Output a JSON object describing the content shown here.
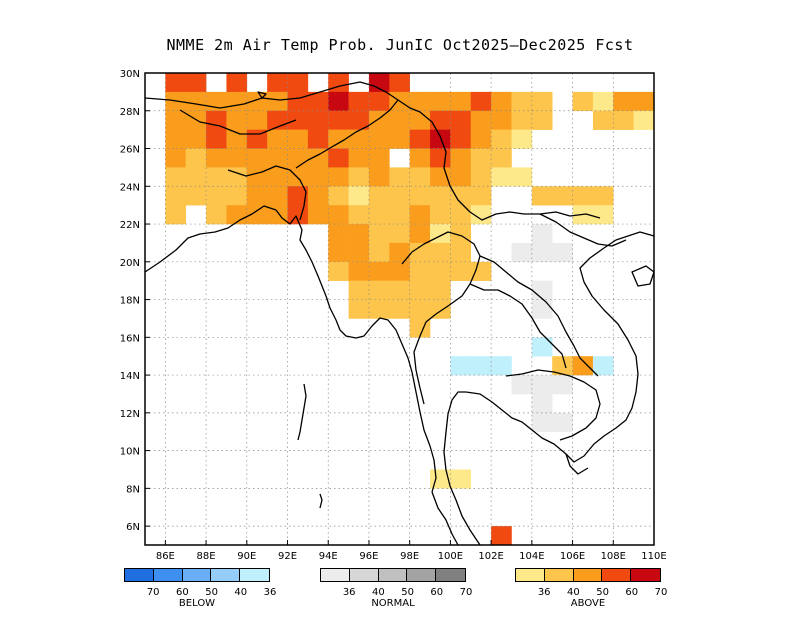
{
  "title": "NMME 2m Air Temp Prob. JunIC  Oct2025—Dec2025 Fcst",
  "map": {
    "lon_range": [
      85,
      110
    ],
    "lat_range": [
      5,
      30
    ],
    "x_tick_labels": [
      "86E",
      "88E",
      "90E",
      "92E",
      "94E",
      "96E",
      "98E",
      "100E",
      "102E",
      "104E",
      "106E",
      "108E",
      "110E"
    ],
    "y_tick_labels": [
      "6N",
      "8N",
      "10N",
      "12N",
      "14N",
      "16N",
      "18N",
      "20N",
      "22N",
      "24N",
      "26N",
      "28N",
      "30N"
    ],
    "grid": "dotted"
  },
  "legend": {
    "below": {
      "name": "BELOW",
      "labels": [
        "70",
        "60",
        "50",
        "40",
        "36"
      ],
      "colors": [
        "#1f6fe0",
        "#3f8ff0",
        "#6aaef5",
        "#96cdf8",
        "#bff0fb"
      ]
    },
    "normal": {
      "name": "NORMAL",
      "labels": [
        "36",
        "40",
        "50",
        "60",
        "70"
      ],
      "colors": [
        "#ececec",
        "#d7d7d7",
        "#c0c0c0",
        "#a3a3a3",
        "#808080"
      ]
    },
    "above": {
      "name": "ABOVE",
      "labels": [
        "36",
        "40",
        "50",
        "60",
        "70"
      ],
      "colors": [
        "#fde88a",
        "#fdc54b",
        "#fb9d1c",
        "#f04a10",
        "#c80810"
      ]
    }
  },
  "above_cells": [
    [
      86,
      29,
      4
    ],
    [
      87,
      29,
      4
    ],
    [
      89,
      29,
      4
    ],
    [
      91,
      29,
      4
    ],
    [
      92,
      29,
      4
    ],
    [
      94,
      29,
      4
    ],
    [
      96,
      29,
      5
    ],
    [
      97,
      29,
      4
    ],
    [
      86,
      28,
      3
    ],
    [
      87,
      28,
      3
    ],
    [
      88,
      28,
      3
    ],
    [
      89,
      28,
      3
    ],
    [
      90,
      28,
      3
    ],
    [
      91,
      28,
      3
    ],
    [
      92,
      28,
      4
    ],
    [
      93,
      28,
      4
    ],
    [
      94,
      28,
      5
    ],
    [
      95,
      28,
      4
    ],
    [
      96,
      28,
      4
    ],
    [
      97,
      28,
      3
    ],
    [
      98,
      28,
      3
    ],
    [
      99,
      28,
      3
    ],
    [
      100,
      28,
      3
    ],
    [
      101,
      28,
      4
    ],
    [
      102,
      28,
      3
    ],
    [
      103,
      28,
      2
    ],
    [
      104,
      28,
      2
    ],
    [
      106,
      28,
      2
    ],
    [
      107,
      28,
      1
    ],
    [
      108,
      28,
      3
    ],
    [
      109,
      28,
      3
    ],
    [
      86,
      27,
      3
    ],
    [
      87,
      27,
      3
    ],
    [
      88,
      27,
      4
    ],
    [
      89,
      27,
      3
    ],
    [
      90,
      27,
      3
    ],
    [
      91,
      27,
      4
    ],
    [
      92,
      27,
      4
    ],
    [
      93,
      27,
      4
    ],
    [
      94,
      27,
      4
    ],
    [
      95,
      27,
      4
    ],
    [
      96,
      27,
      3
    ],
    [
      97,
      27,
      3
    ],
    [
      98,
      27,
      3
    ],
    [
      99,
      27,
      4
    ],
    [
      100,
      27,
      4
    ],
    [
      101,
      27,
      3
    ],
    [
      102,
      27,
      3
    ],
    [
      103,
      27,
      2
    ],
    [
      104,
      27,
      2
    ],
    [
      107,
      27,
      2
    ],
    [
      108,
      27,
      2
    ],
    [
      109,
      27,
      1
    ],
    [
      86,
      26,
      3
    ],
    [
      87,
      26,
      3
    ],
    [
      88,
      26,
      4
    ],
    [
      89,
      26,
      3
    ],
    [
      90,
      26,
      4
    ],
    [
      91,
      26,
      3
    ],
    [
      92,
      26,
      3
    ],
    [
      93,
      26,
      4
    ],
    [
      94,
      26,
      3
    ],
    [
      95,
      26,
      3
    ],
    [
      96,
      26,
      3
    ],
    [
      97,
      26,
      3
    ],
    [
      98,
      26,
      4
    ],
    [
      99,
      26,
      5
    ],
    [
      100,
      26,
      4
    ],
    [
      101,
      26,
      3
    ],
    [
      102,
      26,
      2
    ],
    [
      103,
      26,
      1
    ],
    [
      86,
      25,
      3
    ],
    [
      87,
      25,
      2
    ],
    [
      88,
      25,
      3
    ],
    [
      89,
      25,
      3
    ],
    [
      90,
      25,
      3
    ],
    [
      91,
      25,
      3
    ],
    [
      92,
      25,
      3
    ],
    [
      93,
      25,
      3
    ],
    [
      94,
      25,
      4
    ],
    [
      95,
      25,
      3
    ],
    [
      96,
      25,
      3
    ],
    [
      98,
      25,
      3
    ],
    [
      99,
      25,
      4
    ],
    [
      100,
      25,
      3
    ],
    [
      101,
      25,
      2
    ],
    [
      102,
      25,
      2
    ],
    [
      86,
      24,
      2
    ],
    [
      87,
      24,
      2
    ],
    [
      88,
      24,
      2
    ],
    [
      89,
      24,
      2
    ],
    [
      90,
      24,
      3
    ],
    [
      91,
      24,
      3
    ],
    [
      92,
      24,
      3
    ],
    [
      93,
      24,
      3
    ],
    [
      94,
      24,
      3
    ],
    [
      95,
      24,
      2
    ],
    [
      96,
      24,
      3
    ],
    [
      97,
      24,
      2
    ],
    [
      98,
      24,
      2
    ],
    [
      99,
      24,
      3
    ],
    [
      100,
      24,
      3
    ],
    [
      101,
      24,
      2
    ],
    [
      102,
      24,
      1
    ],
    [
      103,
      24,
      1
    ],
    [
      86,
      23,
      2
    ],
    [
      87,
      23,
      2
    ],
    [
      88,
      23,
      2
    ],
    [
      89,
      23,
      2
    ],
    [
      90,
      23,
      3
    ],
    [
      91,
      23,
      3
    ],
    [
      92,
      23,
      4
    ],
    [
      93,
      23,
      3
    ],
    [
      94,
      23,
      2
    ],
    [
      95,
      23,
      1
    ],
    [
      96,
      23,
      2
    ],
    [
      97,
      23,
      2
    ],
    [
      98,
      23,
      2
    ],
    [
      99,
      23,
      2
    ],
    [
      100,
      23,
      2
    ],
    [
      101,
      23,
      2
    ],
    [
      104,
      23,
      2
    ],
    [
      105,
      23,
      2
    ],
    [
      106,
      23,
      2
    ],
    [
      107,
      23,
      2
    ],
    [
      86,
      22,
      2
    ],
    [
      88,
      22,
      2
    ],
    [
      89,
      22,
      3
    ],
    [
      90,
      22,
      3
    ],
    [
      91,
      22,
      3
    ],
    [
      92,
      22,
      4
    ],
    [
      93,
      22,
      3
    ],
    [
      94,
      22,
      3
    ],
    [
      95,
      22,
      2
    ],
    [
      96,
      22,
      2
    ],
    [
      97,
      22,
      2
    ],
    [
      98,
      22,
      3
    ],
    [
      99,
      22,
      2
    ],
    [
      100,
      22,
      2
    ],
    [
      101,
      22,
      1
    ],
    [
      106,
      22,
      1
    ],
    [
      107,
      22,
      1
    ],
    [
      94,
      21,
      3
    ],
    [
      95,
      21,
      3
    ],
    [
      96,
      21,
      2
    ],
    [
      97,
      21,
      2
    ],
    [
      98,
      21,
      3
    ],
    [
      99,
      21,
      1
    ],
    [
      100,
      21,
      2
    ],
    [
      94,
      20,
      3
    ],
    [
      95,
      20,
      3
    ],
    [
      96,
      20,
      2
    ],
    [
      97,
      20,
      3
    ],
    [
      98,
      20,
      2
    ],
    [
      99,
      20,
      2
    ],
    [
      100,
      20,
      2
    ],
    [
      94,
      19,
      2
    ],
    [
      95,
      19,
      3
    ],
    [
      96,
      19,
      3
    ],
    [
      97,
      19,
      3
    ],
    [
      98,
      19,
      2
    ],
    [
      99,
      19,
      2
    ],
    [
      100,
      19,
      2
    ],
    [
      101,
      19,
      2
    ],
    [
      95,
      18,
      2
    ],
    [
      96,
      18,
      2
    ],
    [
      97,
      18,
      2
    ],
    [
      98,
      18,
      2
    ],
    [
      99,
      18,
      2
    ],
    [
      95,
      17,
      2
    ],
    [
      96,
      17,
      2
    ],
    [
      97,
      17,
      2
    ],
    [
      98,
      17,
      2
    ],
    [
      99,
      17,
      2
    ],
    [
      98,
      16,
      2
    ],
    [
      106,
      14,
      3
    ],
    [
      105,
      14,
      2
    ],
    [
      99,
      8,
      1
    ],
    [
      100,
      8,
      1
    ],
    [
      102,
      5,
      4
    ]
  ],
  "normal_cells": [
    [
      104,
      21,
      1
    ],
    [
      103,
      20,
      1
    ],
    [
      104,
      20,
      1
    ],
    [
      105,
      20,
      1
    ],
    [
      104,
      18,
      1
    ],
    [
      104,
      17,
      1
    ],
    [
      103,
      13,
      1
    ],
    [
      104,
      13,
      1
    ],
    [
      105,
      13,
      1
    ],
    [
      104,
      12,
      1
    ],
    [
      104,
      11,
      1
    ],
    [
      105,
      11,
      1
    ]
  ],
  "below_cells": [
    [
      100,
      14,
      1
    ],
    [
      101,
      14,
      1
    ],
    [
      102,
      14,
      1
    ],
    [
      104,
      15,
      1
    ],
    [
      107,
      14,
      1
    ]
  ]
}
